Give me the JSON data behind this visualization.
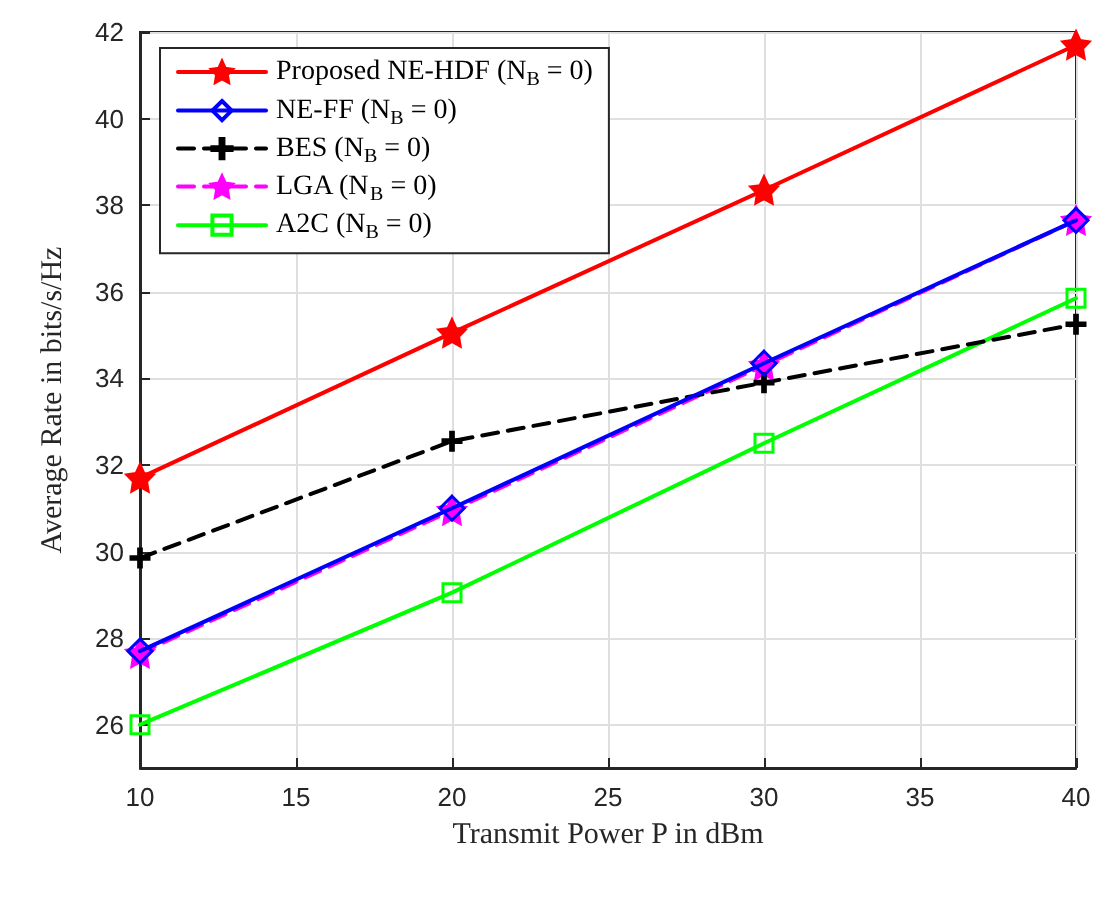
{
  "chart_data": {
    "type": "line",
    "xlabel": "Transmit Power P in dBm",
    "ylabel": "Average Rate in bits/s/Hz",
    "x": [
      10,
      20,
      30,
      40
    ],
    "series": [
      {
        "name": "Proposed NE-HDF (N$_{B}$ = 0)",
        "color": "#ff0000",
        "marker": "star",
        "line_style": "solid",
        "values": [
          31.7,
          35.05,
          38.35,
          41.7
        ]
      },
      {
        "name": "NE-FF (N$_{B}$ = 0)",
        "color": "#0000ff",
        "marker": "diamond",
        "line_style": "solid",
        "values": [
          27.7,
          31.0,
          34.35,
          37.65
        ]
      },
      {
        "name": "BES (N$_{B}$ = 0)",
        "color": "#000000",
        "marker": "cross",
        "line_style": "dashed",
        "values": [
          29.85,
          32.55,
          33.9,
          35.25
        ]
      },
      {
        "name": "LGA (N$_{B}$ = 0)",
        "color": "#ff00ff",
        "marker": "star",
        "line_style": "dashed",
        "values": [
          27.65,
          30.95,
          34.3,
          37.65
        ]
      },
      {
        "name": "A2C (N$_{B}$ = 0)",
        "color": "#00ff00",
        "marker": "square",
        "line_style": "solid",
        "values": [
          26.0,
          29.05,
          32.5,
          35.85
        ]
      }
    ],
    "xlim": [
      10,
      40
    ],
    "xticks": [
      10,
      15,
      20,
      25,
      30,
      35,
      40
    ],
    "ylim": [
      25,
      42
    ],
    "yticks": [
      26,
      28,
      30,
      32,
      34,
      36,
      38,
      40,
      42
    ],
    "grid": true,
    "legend": "top left"
  }
}
